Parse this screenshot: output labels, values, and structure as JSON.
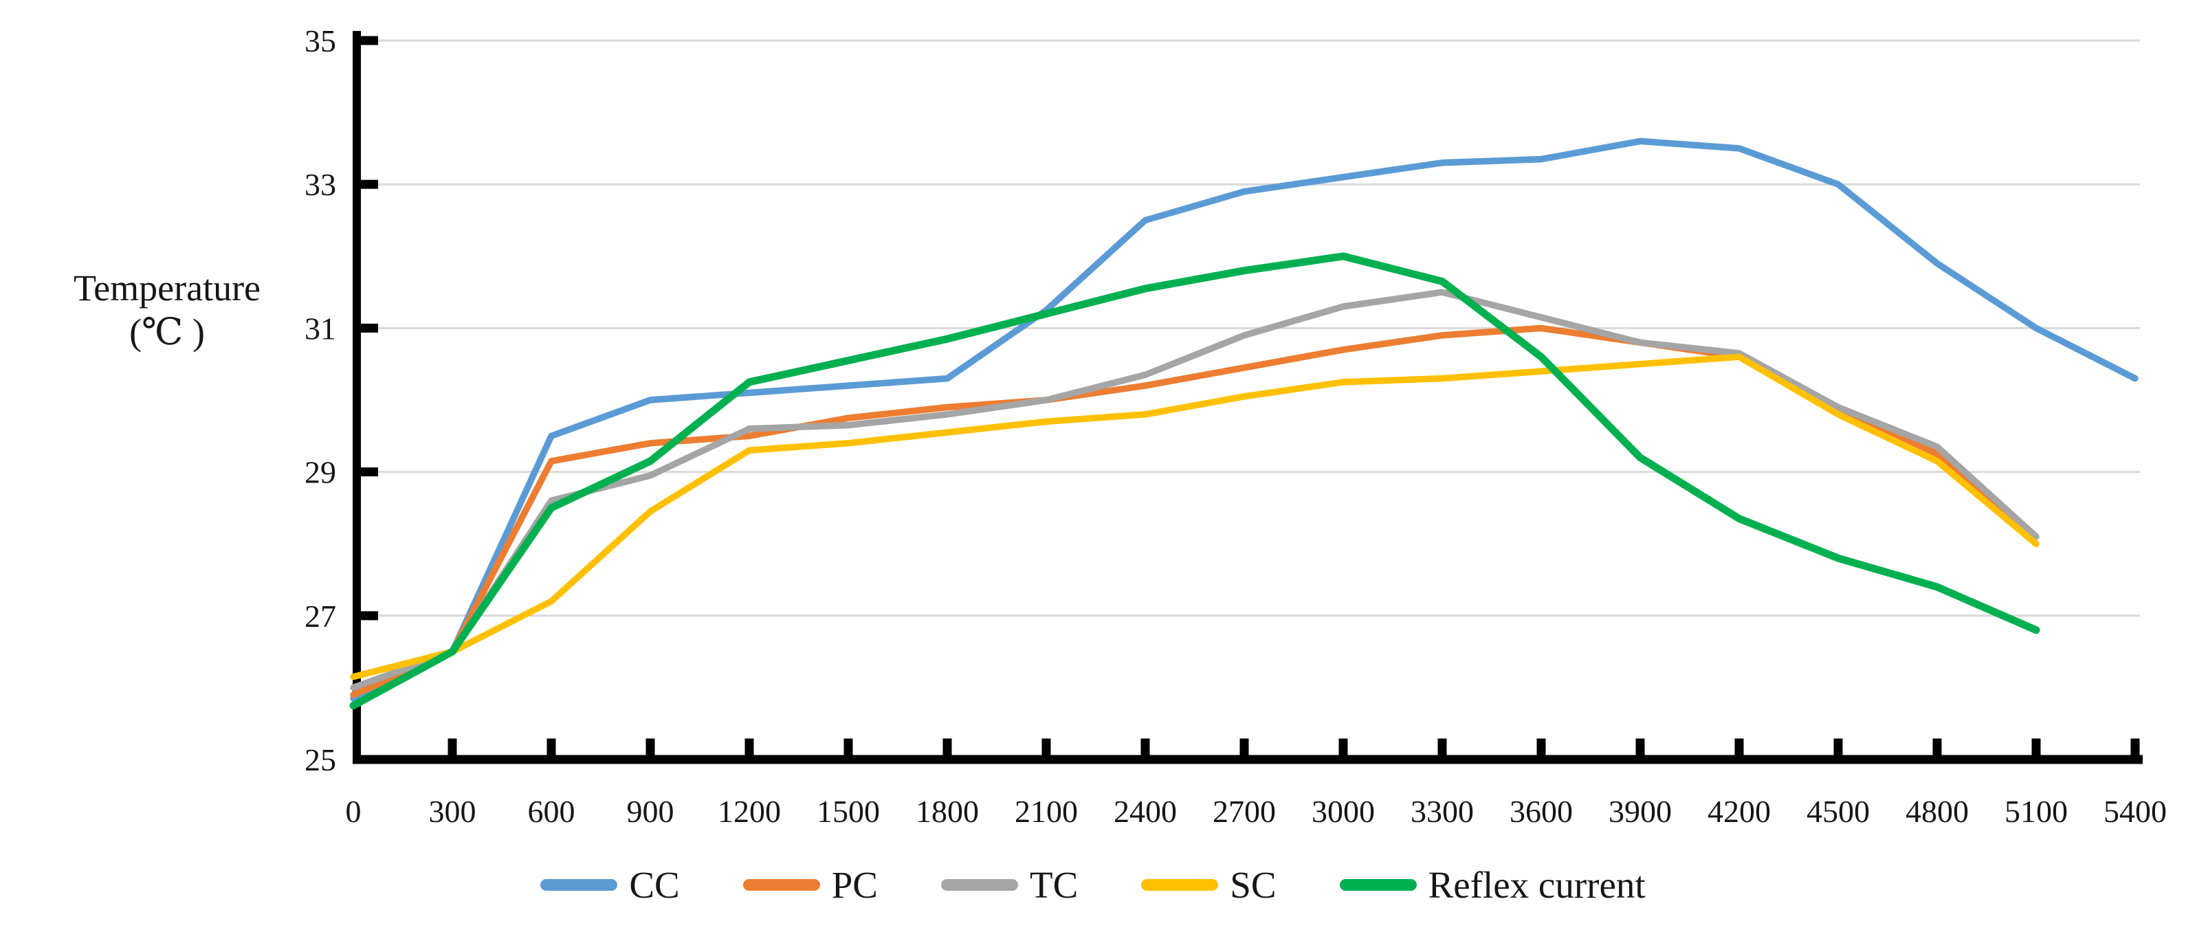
{
  "figure": {
    "background": "#ffffff",
    "axis_color": "#000000",
    "gridline_color": "#d9d9d9",
    "text_color": "#161616"
  },
  "chart_data": {
    "type": "line",
    "title": "",
    "ylabel_lines": [
      "Temperature",
      "(℃ )"
    ],
    "xlabel": "",
    "ylim": [
      25,
      35
    ],
    "xlim": [
      0,
      5400
    ],
    "grid": "horizontal-only",
    "gridline_values": [
      27,
      29,
      31,
      33,
      35
    ],
    "y_ticks": [
      25,
      27,
      29,
      31,
      33,
      35
    ],
    "x_step": 300,
    "x": [
      0,
      300,
      600,
      900,
      1200,
      1500,
      1800,
      2100,
      2400,
      2700,
      3000,
      3300,
      3600,
      3900,
      4200,
      4500,
      4800,
      5100,
      5400
    ],
    "x_tick_labels": [
      "0",
      "300",
      "600",
      "900",
      "1200",
      "1500",
      "1800",
      "2100",
      "2400",
      "2700",
      "3000",
      "3300",
      "3600",
      "3900",
      "4200",
      "4500",
      "4800",
      "5100",
      "5400"
    ],
    "legend_position": "bottom",
    "series": [
      {
        "name": "CC",
        "color": "#5B9BD5",
        "line_width": 9.5,
        "values": [
          25.85,
          26.5,
          29.5,
          30.0,
          30.1,
          30.2,
          30.3,
          31.25,
          32.5,
          32.9,
          33.1,
          33.3,
          33.35,
          33.6,
          33.5,
          33.0,
          31.9,
          31.0,
          30.3
        ]
      },
      {
        "name": "PC",
        "color": "#ED7D31",
        "line_width": 9.5,
        "values": [
          25.9,
          26.5,
          29.15,
          29.4,
          29.5,
          29.75,
          29.9,
          30.0,
          30.2,
          30.45,
          30.7,
          30.9,
          31.0,
          30.8,
          30.6,
          29.9,
          29.25,
          28.0,
          null
        ]
      },
      {
        "name": "TC",
        "color": "#A5A5A5",
        "line_width": 9.5,
        "values": [
          26.0,
          26.5,
          28.6,
          28.95,
          29.6,
          29.65,
          29.8,
          30.0,
          30.35,
          30.9,
          31.3,
          31.5,
          31.15,
          30.8,
          30.65,
          29.9,
          29.35,
          28.1,
          null
        ]
      },
      {
        "name": "SC",
        "color": "#FFC000",
        "line_width": 9.5,
        "values": [
          26.15,
          26.5,
          27.2,
          28.45,
          29.3,
          29.4,
          29.55,
          29.7,
          29.8,
          30.05,
          30.25,
          30.3,
          30.4,
          30.5,
          30.6,
          29.8,
          29.15,
          28.0,
          null
        ]
      },
      {
        "name": "Reflex current",
        "color": "#00B050",
        "line_width": 11,
        "values": [
          25.75,
          26.5,
          28.5,
          29.15,
          30.25,
          30.55,
          30.85,
          31.2,
          31.55,
          31.8,
          32.0,
          31.65,
          30.6,
          29.2,
          28.35,
          27.8,
          27.4,
          26.8,
          null
        ]
      }
    ]
  }
}
